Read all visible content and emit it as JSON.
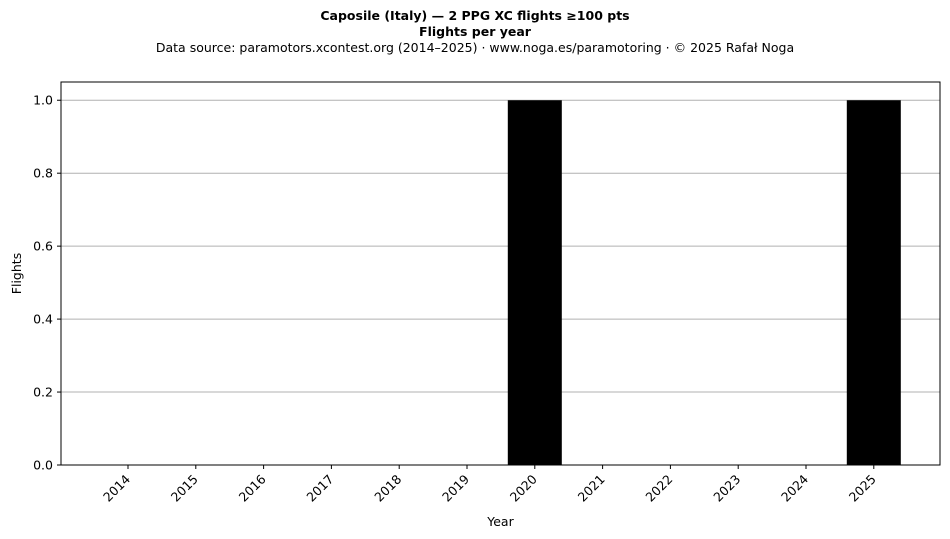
{
  "header": {
    "title": "Caposile (Italy)  —  2 PPG XC flights ≥100 pts",
    "subtitle": "Flights per year",
    "source": "Data source: paramotors.xcontest.org (2014–2025)  ·  www.noga.es/paramotoring  ·  © 2025 Rafał Noga"
  },
  "chart_data": {
    "type": "bar",
    "categories": [
      "2014",
      "2015",
      "2016",
      "2017",
      "2018",
      "2019",
      "2020",
      "2021",
      "2022",
      "2023",
      "2024",
      "2025"
    ],
    "values": [
      0,
      0,
      0,
      0,
      0,
      0,
      1,
      0,
      0,
      0,
      0,
      1
    ],
    "xlabel": "Year",
    "ylabel": "Flights",
    "ylim": [
      0,
      1.05
    ],
    "yticks": [
      "0.0",
      "0.2",
      "0.4",
      "0.6",
      "0.8",
      "1.0"
    ],
    "grid": "horizontal",
    "bar_color": "#000000",
    "grid_color": "#b0b0b0"
  }
}
